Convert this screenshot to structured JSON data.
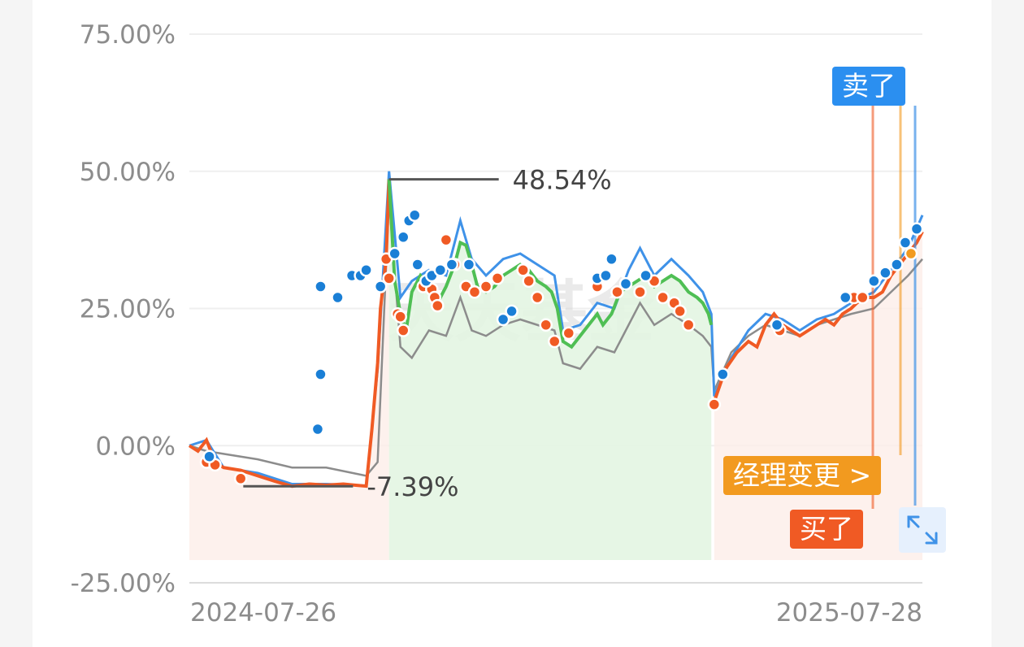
{
  "chart_data": {
    "type": "line",
    "x_start": "2024-07-26",
    "x_end": "2025-07-28",
    "x_tick_labels": [
      "2024-07-26",
      "2025-07-28"
    ],
    "y_tick_labels": [
      "75.00%",
      "50.00%",
      "25.00%",
      "0.00%",
      "-25.00%"
    ],
    "ylim": [
      -25,
      75
    ],
    "grid": true,
    "max_annotation": "48.54%",
    "min_annotation": "-7.39%",
    "watermark": "天天基金",
    "colors": {
      "series_main_up": "#4fbf54",
      "series_main_down": "#f05a24",
      "series_blue": "#3f92e8",
      "series_gray": "#8c8c8c",
      "buy_dot": "#f05a24",
      "sell_dot": "#1a7fd6",
      "manager_dot": "#f29a1f"
    },
    "series": [
      {
        "values": [
          [
            0,
            0
          ],
          [
            3,
            -1
          ],
          [
            6,
            1
          ],
          [
            9,
            -3
          ],
          [
            12,
            -4
          ],
          [
            18,
            -4.5
          ],
          [
            24,
            -5.5
          ],
          [
            30,
            -6.5
          ],
          [
            36,
            -7.4
          ],
          [
            42,
            -7
          ],
          [
            48,
            -7.2
          ],
          [
            54,
            -7
          ],
          [
            58,
            -7.2
          ],
          [
            62,
            -7.39
          ],
          [
            64,
            3
          ],
          [
            66,
            15
          ],
          [
            67,
            25
          ],
          [
            69,
            34
          ],
          [
            70,
            48.54
          ],
          [
            72,
            30
          ],
          [
            74,
            24
          ],
          [
            76,
            21
          ],
          [
            78,
            28
          ],
          [
            81,
            31
          ],
          [
            84,
            29
          ],
          [
            87,
            26
          ],
          [
            90,
            29
          ],
          [
            93,
            33
          ],
          [
            95,
            37
          ],
          [
            97,
            36.5
          ],
          [
            99,
            33
          ],
          [
            101,
            29
          ],
          [
            104,
            28
          ],
          [
            107,
            29
          ],
          [
            110,
            31
          ],
          [
            113,
            32
          ],
          [
            116,
            33
          ],
          [
            119,
            32
          ],
          [
            122,
            30
          ],
          [
            125,
            29
          ],
          [
            127,
            28
          ],
          [
            129,
            25
          ],
          [
            131,
            19
          ],
          [
            134,
            18
          ],
          [
            137,
            20
          ],
          [
            140,
            22
          ],
          [
            143,
            24
          ],
          [
            145,
            22
          ],
          [
            148,
            24
          ],
          [
            151,
            28
          ],
          [
            154,
            29
          ],
          [
            157,
            30
          ],
          [
            160,
            31
          ],
          [
            163,
            29
          ],
          [
            166,
            30
          ],
          [
            169,
            31
          ],
          [
            172,
            30
          ],
          [
            175,
            28
          ],
          [
            178,
            27
          ],
          [
            180,
            26
          ],
          [
            182,
            24
          ],
          [
            183,
            22
          ],
          [
            184,
            8
          ],
          [
            188,
            14
          ],
          [
            192,
            17
          ],
          [
            196,
            19
          ],
          [
            199,
            18
          ],
          [
            202,
            22
          ],
          [
            205,
            24
          ],
          [
            208,
            22
          ],
          [
            211,
            21
          ],
          [
            214,
            20
          ],
          [
            217,
            21
          ],
          [
            220,
            22
          ],
          [
            223,
            23
          ],
          [
            226,
            22
          ],
          [
            229,
            24
          ],
          [
            232,
            25
          ],
          [
            234,
            26
          ],
          [
            237,
            27
          ],
          [
            240,
            27
          ],
          [
            243,
            28
          ],
          [
            246,
            31
          ],
          [
            249,
            33
          ],
          [
            252,
            35
          ],
          [
            255,
            37
          ],
          [
            257,
            39
          ]
        ]
      },
      {
        "values": [
          [
            0,
            0
          ],
          [
            6,
            1
          ],
          [
            12,
            -4
          ],
          [
            24,
            -5
          ],
          [
            36,
            -7
          ],
          [
            48,
            -7
          ],
          [
            62,
            -7.3
          ],
          [
            66,
            14
          ],
          [
            70,
            50
          ],
          [
            74,
            27
          ],
          [
            78,
            30
          ],
          [
            84,
            32
          ],
          [
            90,
            31
          ],
          [
            95,
            41
          ],
          [
            99,
            34
          ],
          [
            104,
            31
          ],
          [
            110,
            34
          ],
          [
            116,
            35
          ],
          [
            122,
            33
          ],
          [
            128,
            31
          ],
          [
            131,
            21
          ],
          [
            137,
            22
          ],
          [
            143,
            26
          ],
          [
            149,
            25
          ],
          [
            154,
            32
          ],
          [
            158,
            36
          ],
          [
            163,
            31
          ],
          [
            169,
            34
          ],
          [
            175,
            31
          ],
          [
            180,
            28
          ],
          [
            183,
            24
          ],
          [
            184,
            9
          ],
          [
            190,
            16
          ],
          [
            196,
            21
          ],
          [
            202,
            24
          ],
          [
            208,
            23
          ],
          [
            214,
            21
          ],
          [
            220,
            23
          ],
          [
            226,
            24
          ],
          [
            232,
            26
          ],
          [
            240,
            28
          ],
          [
            246,
            32
          ],
          [
            252,
            36
          ],
          [
            257,
            42
          ]
        ]
      },
      {
        "values": [
          [
            0,
            0
          ],
          [
            6,
            -1
          ],
          [
            12,
            -1.5
          ],
          [
            24,
            -2.5
          ],
          [
            36,
            -4
          ],
          [
            48,
            -4
          ],
          [
            62,
            -5.5
          ],
          [
            66,
            -3
          ],
          [
            70,
            45
          ],
          [
            74,
            18
          ],
          [
            78,
            16
          ],
          [
            84,
            21
          ],
          [
            90,
            20
          ],
          [
            95,
            27
          ],
          [
            99,
            21
          ],
          [
            104,
            20
          ],
          [
            110,
            22
          ],
          [
            116,
            23
          ],
          [
            122,
            22
          ],
          [
            128,
            21
          ],
          [
            131,
            15
          ],
          [
            137,
            14
          ],
          [
            143,
            18
          ],
          [
            149,
            17
          ],
          [
            154,
            22
          ],
          [
            158,
            26
          ],
          [
            163,
            22
          ],
          [
            169,
            24
          ],
          [
            175,
            22
          ],
          [
            180,
            20
          ],
          [
            183,
            18
          ],
          [
            184,
            10
          ],
          [
            190,
            17
          ],
          [
            196,
            20
          ],
          [
            202,
            22
          ],
          [
            208,
            21
          ],
          [
            214,
            20
          ],
          [
            220,
            22
          ],
          [
            226,
            23
          ],
          [
            232,
            24
          ],
          [
            240,
            25
          ],
          [
            246,
            28
          ],
          [
            252,
            31
          ],
          [
            257,
            34
          ]
        ]
      }
    ],
    "buy_points": [
      [
        6,
        -3
      ],
      [
        9,
        -3.5
      ],
      [
        18,
        -6
      ],
      [
        69,
        34
      ],
      [
        70,
        30.5
      ],
      [
        73,
        24
      ],
      [
        74,
        23.5
      ],
      [
        75,
        21
      ],
      [
        82,
        29
      ],
      [
        85,
        28.5
      ],
      [
        86,
        27
      ],
      [
        87,
        25.5
      ],
      [
        90,
        37.5
      ],
      [
        93,
        33
      ],
      [
        97,
        29
      ],
      [
        100,
        28
      ],
      [
        104,
        29
      ],
      [
        108,
        30.5
      ],
      [
        117,
        32
      ],
      [
        119,
        30
      ],
      [
        122,
        27
      ],
      [
        125,
        22
      ],
      [
        128,
        19
      ],
      [
        133,
        20.5
      ],
      [
        143,
        29
      ],
      [
        150,
        28
      ],
      [
        158,
        28
      ],
      [
        163,
        30
      ],
      [
        166,
        27
      ],
      [
        170,
        26
      ],
      [
        172,
        24.5
      ],
      [
        175,
        22
      ],
      [
        184,
        7.5
      ],
      [
        207,
        21
      ],
      [
        233,
        27
      ],
      [
        236,
        27
      ]
    ],
    "sell_points": [
      [
        7,
        -2
      ],
      [
        45,
        3
      ],
      [
        46,
        13
      ],
      [
        46,
        29
      ],
      [
        52,
        27
      ],
      [
        57,
        31
      ],
      [
        60,
        31
      ],
      [
        62,
        32
      ],
      [
        67,
        29
      ],
      [
        72,
        35
      ],
      [
        75,
        38
      ],
      [
        77,
        41
      ],
      [
        79,
        42
      ],
      [
        80,
        33
      ],
      [
        83,
        30
      ],
      [
        85,
        31
      ],
      [
        88,
        32
      ],
      [
        92,
        33
      ],
      [
        98,
        33
      ],
      [
        110,
        23
      ],
      [
        113,
        24.5
      ],
      [
        143,
        30.5
      ],
      [
        146,
        31
      ],
      [
        148,
        34
      ],
      [
        153,
        29.5
      ],
      [
        160,
        31
      ],
      [
        187,
        13
      ],
      [
        206,
        22
      ],
      [
        230,
        27
      ],
      [
        240,
        30
      ],
      [
        244,
        31.5
      ],
      [
        248,
        33
      ],
      [
        251,
        37
      ],
      [
        255,
        39.5
      ]
    ],
    "manager_change_points": [
      [
        253,
        35
      ]
    ],
    "markers": {
      "sell": "卖了",
      "manager_change": "经理变更 >",
      "buy": "买了"
    }
  }
}
